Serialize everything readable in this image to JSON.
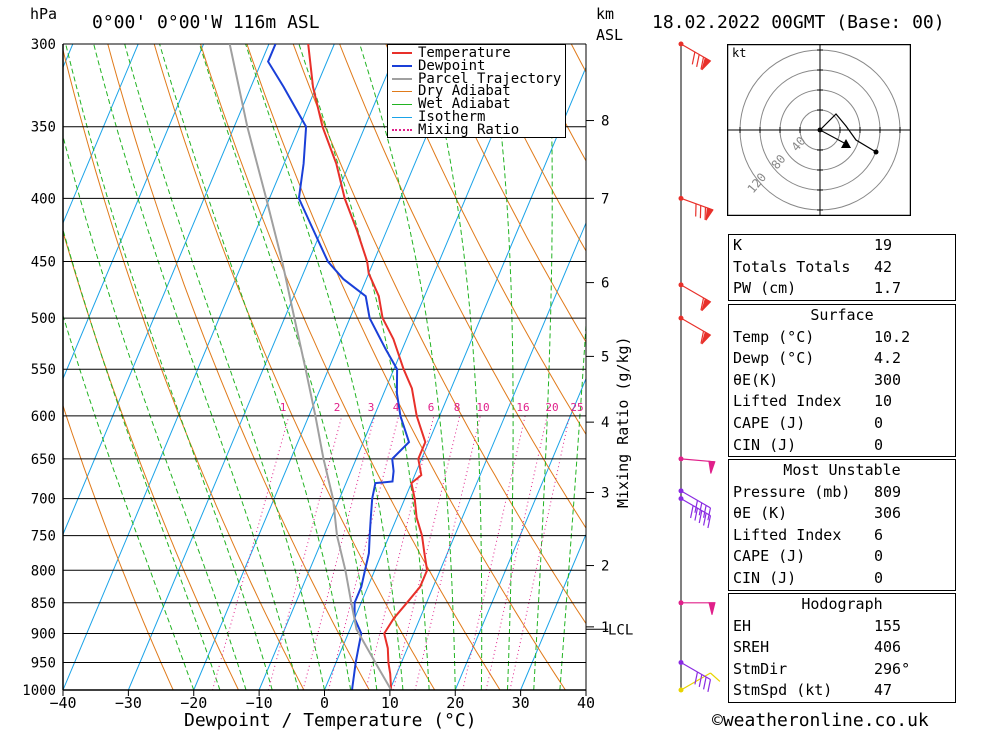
{
  "header": {
    "location": "0°00' 0°00'W 116m ASL",
    "datetime": "18.02.2022 00GMT (Base: 00)",
    "hpa_unit": "hPa",
    "km_unit": "km",
    "asl_unit": "ASL"
  },
  "footer": {
    "copyright": "©weatheronline.co.uk"
  },
  "colors": {
    "temperature": "#e8302a",
    "dewpoint": "#1a3fd8",
    "parcel": "#a0a0a0",
    "dry_adiabat": "#e07a1a",
    "wet_adiabat": "#22b322",
    "isotherm": "#1aa3e8",
    "mixing_ratio": "#e0208a"
  },
  "chart_data": {
    "type": "line",
    "title": "",
    "xlabel": "Dewpoint / Temperature (°C)",
    "ylabel": "",
    "right_label": "Mixing Ratio (g/kg)",
    "xlim": [
      -40,
      40
    ],
    "ylim": [
      1000,
      300
    ],
    "x_ticks": [
      "−40",
      "−30",
      "−20",
      "−10",
      "0",
      "10",
      "20",
      "30",
      "40"
    ],
    "pressure_levels": [
      300,
      350,
      400,
      450,
      500,
      550,
      600,
      650,
      700,
      750,
      800,
      850,
      900,
      950,
      1000
    ],
    "km_ticks": [
      {
        "label": "1",
        "p": 889
      },
      {
        "label": "2",
        "p": 793
      },
      {
        "label": "3",
        "p": 692
      },
      {
        "label": "4",
        "p": 607
      },
      {
        "label": "5",
        "p": 537
      },
      {
        "label": "6",
        "p": 468
      },
      {
        "label": "7",
        "p": 400
      },
      {
        "label": "8",
        "p": 346
      }
    ],
    "lcl_label": "LCL",
    "lcl_pressure": 893,
    "mixing_ratio_labels": [
      "1",
      "2",
      "3",
      "4",
      "6",
      "8",
      "10",
      "16",
      "20",
      "25"
    ],
    "legend": [
      "Temperature",
      "Dewpoint",
      "Parcel Trajectory",
      "Dry Adiabat",
      "Wet Adiabat",
      "Isotherm",
      "Mixing Ratio"
    ],
    "legend_position": "top-right",
    "series": [
      {
        "name": "Temperature",
        "points": [
          [
            1000,
            10.2
          ],
          [
            970,
            9.0
          ],
          [
            950,
            8.0
          ],
          [
            925,
            7.0
          ],
          [
            900,
            5.5
          ],
          [
            875,
            6.0
          ],
          [
            850,
            7.0
          ],
          [
            825,
            8.0
          ],
          [
            800,
            8.0
          ],
          [
            775,
            6.5
          ],
          [
            750,
            5.0
          ],
          [
            725,
            3.0
          ],
          [
            700,
            1.5
          ],
          [
            680,
            0.0
          ],
          [
            670,
            1.0
          ],
          [
            650,
            -0.5
          ],
          [
            630,
            -0.5
          ],
          [
            600,
            -3.5
          ],
          [
            570,
            -6.0
          ],
          [
            550,
            -8.5
          ],
          [
            520,
            -12.0
          ],
          [
            500,
            -15.0
          ],
          [
            480,
            -17.0
          ],
          [
            460,
            -20.0
          ],
          [
            450,
            -21.0
          ],
          [
            425,
            -24.5
          ],
          [
            400,
            -28.5
          ],
          [
            375,
            -32.0
          ],
          [
            350,
            -36.5
          ],
          [
            325,
            -40.5
          ],
          [
            300,
            -44.0
          ]
        ]
      },
      {
        "name": "Dewpoint",
        "points": [
          [
            1000,
            4.2
          ],
          [
            970,
            3.5
          ],
          [
            950,
            3.0
          ],
          [
            925,
            2.5
          ],
          [
            900,
            2.0
          ],
          [
            875,
            0.0
          ],
          [
            850,
            -1.0
          ],
          [
            825,
            -1.0
          ],
          [
            800,
            -1.5
          ],
          [
            775,
            -2.0
          ],
          [
            750,
            -3.0
          ],
          [
            725,
            -4.0
          ],
          [
            700,
            -5.0
          ],
          [
            680,
            -5.5
          ],
          [
            678,
            -3.0
          ],
          [
            665,
            -3.5
          ],
          [
            650,
            -4.5
          ],
          [
            630,
            -3.0
          ],
          [
            600,
            -6.0
          ],
          [
            575,
            -8.0
          ],
          [
            550,
            -9.5
          ],
          [
            530,
            -12.5
          ],
          [
            500,
            -17.0
          ],
          [
            480,
            -19.0
          ],
          [
            465,
            -23.5
          ],
          [
            450,
            -27.0
          ],
          [
            420,
            -32.0
          ],
          [
            400,
            -35.5
          ],
          [
            375,
            -37.0
          ],
          [
            350,
            -39.0
          ],
          [
            325,
            -45.0
          ],
          [
            310,
            -49.0
          ],
          [
            300,
            -49.0
          ]
        ]
      },
      {
        "name": "Parcel Trajectory",
        "points": [
          [
            1000,
            10.2
          ],
          [
            950,
            6.0
          ],
          [
            893,
            1.0
          ],
          [
            850,
            -1.5
          ],
          [
            800,
            -4.5
          ],
          [
            750,
            -8.0
          ],
          [
            700,
            -11.0
          ],
          [
            650,
            -15.0
          ],
          [
            600,
            -19.0
          ],
          [
            550,
            -23.5
          ],
          [
            500,
            -28.5
          ],
          [
            450,
            -34.0
          ],
          [
            400,
            -40.5
          ],
          [
            350,
            -48.0
          ],
          [
            300,
            -56.0
          ]
        ]
      }
    ]
  },
  "wind_barbs": [
    {
      "p": 1000,
      "barbs": 1,
      "pennants": 0,
      "dir": 240
    },
    {
      "p": 950,
      "barbs": 4,
      "pennants": 0,
      "dir": 300
    },
    {
      "p": 850,
      "barbs": 0,
      "pennants": 1,
      "dir": 270
    },
    {
      "p": 700,
      "barbs": 5,
      "pennants": 0,
      "dir": 300
    },
    {
      "p": 690,
      "barbs": 4,
      "pennants": 0,
      "dir": 300
    },
    {
      "p": 650,
      "barbs": 0,
      "pennants": 1,
      "dir": 275
    },
    {
      "p": 500,
      "barbs": 1,
      "pennants": 1,
      "dir": 300
    },
    {
      "p": 470,
      "barbs": 1,
      "pennants": 1,
      "dir": 300
    },
    {
      "p": 400,
      "barbs": 3,
      "pennants": 1,
      "dir": 290
    },
    {
      "p": 300,
      "barbs": 3,
      "pennants": 1,
      "dir": 300
    }
  ],
  "hodograph": {
    "unit": "kt",
    "ring_labels": [
      "40",
      "80",
      "120"
    ],
    "trace": [
      [
        0,
        0
      ],
      [
        3,
        3
      ],
      [
        8,
        8
      ],
      [
        13,
        2
      ],
      [
        18,
        -5
      ],
      [
        28,
        -11
      ]
    ],
    "storm_marker": [
      13,
      -7
    ]
  },
  "tables": {
    "indices": [
      {
        "key": "K",
        "value": "19"
      },
      {
        "key": "Totals Totals",
        "value": "42"
      },
      {
        "key": "PW (cm)",
        "value": "1.7"
      }
    ],
    "surface": {
      "title": "Surface",
      "rows": [
        {
          "key": "Temp (°C)",
          "value": "10.2"
        },
        {
          "key": "Dewp (°C)",
          "value": "4.2"
        },
        {
          "key": "θE(K)",
          "value": "300"
        },
        {
          "key": "Lifted Index",
          "value": "10"
        },
        {
          "key": "CAPE (J)",
          "value": "0"
        },
        {
          "key": "CIN (J)",
          "value": "0"
        }
      ]
    },
    "most_unstable": {
      "title": "Most Unstable",
      "rows": [
        {
          "key": "Pressure (mb)",
          "value": "809"
        },
        {
          "key": "θE (K)",
          "value": "306"
        },
        {
          "key": "Lifted Index",
          "value": "6"
        },
        {
          "key": "CAPE (J)",
          "value": "0"
        },
        {
          "key": "CIN (J)",
          "value": "0"
        }
      ]
    },
    "hodograph": {
      "title": "Hodograph",
      "rows": [
        {
          "key": "EH",
          "value": "155"
        },
        {
          "key": "SREH",
          "value": "406"
        },
        {
          "key": "StmDir",
          "value": "296°"
        },
        {
          "key": "StmSpd (kt)",
          "value": "47"
        }
      ]
    }
  }
}
